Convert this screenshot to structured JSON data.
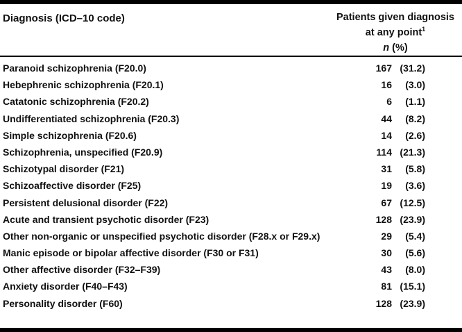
{
  "table": {
    "header": {
      "diagnosis_column": "Diagnosis (ICD–10 code)",
      "patients_line1": "Patients given diagnosis",
      "patients_line2": "at any point",
      "footnote_marker": "1",
      "stat_symbol": "n",
      "stat_rest": " (%)"
    },
    "rows": [
      {
        "diagnosis": "Paranoid schizophrenia (F20.0)",
        "n": "167",
        "pct": "(31.2)"
      },
      {
        "diagnosis": "Hebephrenic schizophrenia (F20.1)",
        "n": "16",
        "pct": "(3.0)"
      },
      {
        "diagnosis": "Catatonic schizophrenia (F20.2)",
        "n": "6",
        "pct": "(1.1)"
      },
      {
        "diagnosis": "Undifferentiated schizophrenia (F20.3)",
        "n": "44",
        "pct": "(8.2)"
      },
      {
        "diagnosis": "Simple schizophrenia (F20.6)",
        "n": "14",
        "pct": "(2.6)"
      },
      {
        "diagnosis": "Schizophrenia, unspecified (F20.9)",
        "n": "114",
        "pct": "(21.3)"
      },
      {
        "diagnosis": "Schizotypal disorder (F21)",
        "n": "31",
        "pct": "(5.8)"
      },
      {
        "diagnosis": "Schizoaffective disorder (F25)",
        "n": "19",
        "pct": "(3.6)"
      },
      {
        "diagnosis": "Persistent delusional disorder (F22)",
        "n": "67",
        "pct": "(12.5)"
      },
      {
        "diagnosis": "Acute and transient psychotic disorder (F23)",
        "n": "128",
        "pct": "(23.9)"
      },
      {
        "diagnosis": "Other non-organic or unspecified psychotic disorder (F28.x or F29.x)",
        "n": "29",
        "pct": "(5.4)"
      },
      {
        "diagnosis": "Manic episode or bipolar affective disorder (F30 or F31)",
        "n": "30",
        "pct": "(5.6)"
      },
      {
        "diagnosis": "Other affective disorder (F32–F39)",
        "n": "43",
        "pct": "(8.0)"
      },
      {
        "diagnosis": "Anxiety disorder (F40–F43)",
        "n": "81",
        "pct": "(15.1)"
      },
      {
        "diagnosis": "Personality disorder (F60)",
        "n": "128",
        "pct": "(23.9)"
      }
    ]
  },
  "colors": {
    "background": "#ffffff",
    "text": "#101010",
    "rules": "#000000"
  },
  "chart_data": {
    "type": "table",
    "title": "",
    "columns": [
      "Diagnosis (ICD–10 code)",
      "Patients given diagnosis at any point, n",
      "Patients given diagnosis at any point, %"
    ],
    "categories": [
      "Paranoid schizophrenia (F20.0)",
      "Hebephrenic schizophrenia (F20.1)",
      "Catatonic schizophrenia (F20.2)",
      "Undifferentiated schizophrenia (F20.3)",
      "Simple schizophrenia (F20.6)",
      "Schizophrenia, unspecified (F20.9)",
      "Schizotypal disorder (F21)",
      "Schizoaffective disorder (F25)",
      "Persistent delusional disorder (F22)",
      "Acute and transient psychotic disorder (F23)",
      "Other non-organic or unspecified psychotic disorder (F28.x or F29.x)",
      "Manic episode or bipolar affective disorder (F30 or F31)",
      "Other affective disorder (F32–F39)",
      "Anxiety disorder (F40–F43)",
      "Personality disorder (F60)"
    ],
    "series": [
      {
        "name": "n",
        "values": [
          167,
          16,
          6,
          44,
          14,
          114,
          31,
          19,
          67,
          128,
          29,
          30,
          43,
          81,
          128
        ]
      },
      {
        "name": "%",
        "values": [
          31.2,
          3.0,
          1.1,
          8.2,
          2.6,
          21.3,
          5.8,
          3.6,
          12.5,
          23.9,
          5.4,
          5.6,
          8.0,
          15.1,
          23.9
        ]
      }
    ]
  }
}
